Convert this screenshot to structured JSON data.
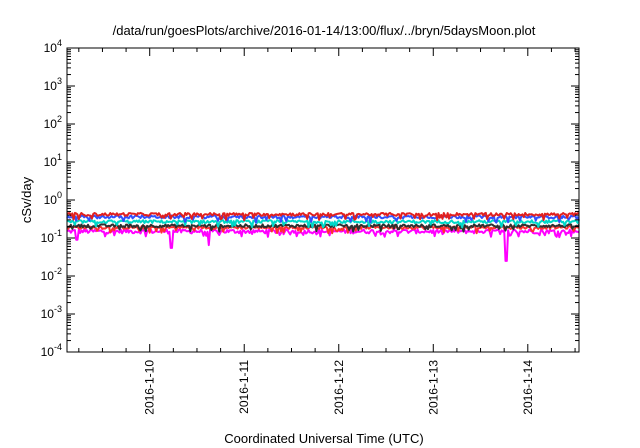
{
  "chart_data": {
    "type": "line",
    "title": "/data/run/goesPlots/archive/2016-01-14/13:00/flux/../bryn/5daysMoon.plot",
    "xlabel": "Coordinated Universal Time (UTC)",
    "ylabel": "cSv/day",
    "yscale": "log",
    "ylim": [
      0.0001,
      10000
    ],
    "xlim": [
      "2016-01-09 03:00",
      "2016-01-14 13:00"
    ],
    "y_ticks": [
      {
        "base": "10",
        "exp": "-4"
      },
      {
        "base": "10",
        "exp": "-3"
      },
      {
        "base": "10",
        "exp": "-2"
      },
      {
        "base": "10",
        "exp": "-1"
      },
      {
        "base": "10",
        "exp": "0"
      },
      {
        "base": "10",
        "exp": "1"
      },
      {
        "base": "10",
        "exp": "2"
      },
      {
        "base": "10",
        "exp": "3"
      },
      {
        "base": "10",
        "exp": "4"
      }
    ],
    "x_ticks": [
      "2016-1-10",
      "2016-1-11",
      "2016-1-12",
      "2016-1-13",
      "2016-1-14"
    ],
    "grid": false,
    "series": [
      {
        "color": "#ff00ff",
        "level": 0.15,
        "dips": [
          [
            0.1,
            0.09
          ],
          [
            1.1,
            0.055
          ],
          [
            1.5,
            0.065
          ],
          [
            4.65,
            0.025
          ]
        ]
      },
      {
        "color": "#ff3030",
        "level": 0.19,
        "dips": []
      },
      {
        "color": "#303030",
        "level": 0.21,
        "dips": []
      },
      {
        "color": "#00d8c8",
        "level": 0.27,
        "dips": []
      },
      {
        "color": "#3050ff",
        "level": 0.36,
        "dips": []
      },
      {
        "color": "#e02020",
        "level": 0.42,
        "dips": []
      }
    ]
  }
}
